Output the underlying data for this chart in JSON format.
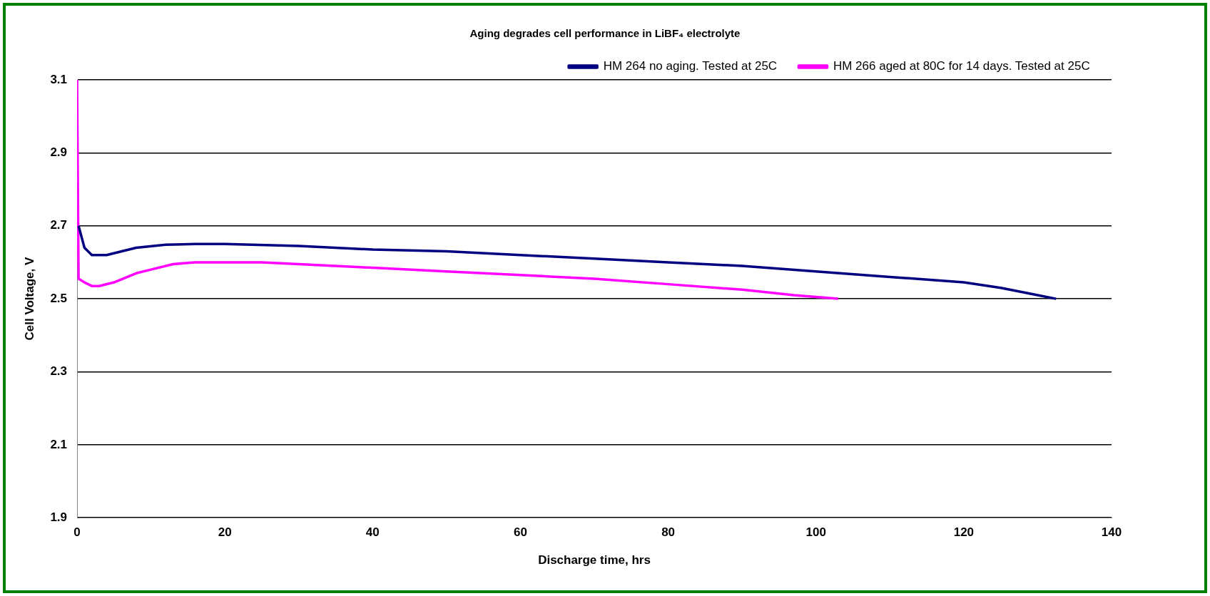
{
  "chart_data": {
    "type": "line",
    "title": "Aging degrades cell performance in LiBF₄ electrolyte",
    "xlabel": "Discharge time, hrs",
    "ylabel": "Cell Voltage, V",
    "xlim": [
      0,
      140
    ],
    "xticks": [
      0,
      20,
      40,
      60,
      80,
      100,
      120,
      140
    ],
    "ylim": [
      1.9,
      3.1
    ],
    "yticks": [
      1.9,
      2.1,
      2.3,
      2.5,
      2.7,
      2.9,
      3.1
    ],
    "grid": "y",
    "legend": "top",
    "marker": "none",
    "series": [
      {
        "name": "HM 264 no aging. Tested at 25C",
        "color": "#000080",
        "x": [
          0.2,
          1,
          2,
          4,
          8,
          12,
          16,
          20,
          30,
          40,
          50,
          60,
          70,
          80,
          90,
          100,
          110,
          120,
          125,
          130,
          132.5
        ],
        "values": [
          2.7,
          2.64,
          2.62,
          2.62,
          2.64,
          2.648,
          2.65,
          2.65,
          2.645,
          2.635,
          2.63,
          2.62,
          2.61,
          2.6,
          2.59,
          2.575,
          2.56,
          2.545,
          2.53,
          2.51,
          2.5
        ]
      },
      {
        "name": "HM 266 aged at 80C for 14 days. Tested at 25C",
        "color": "#ff00ff",
        "x": [
          0,
          0.2,
          1,
          2,
          3,
          5,
          8,
          10,
          13,
          16,
          20,
          25,
          30,
          40,
          50,
          60,
          70,
          80,
          90,
          97,
          103
        ],
        "values": [
          3.1,
          2.555,
          2.545,
          2.535,
          2.535,
          2.545,
          2.57,
          2.58,
          2.595,
          2.6,
          2.6,
          2.6,
          2.595,
          2.585,
          2.575,
          2.565,
          2.555,
          2.54,
          2.525,
          2.51,
          2.5
        ]
      }
    ]
  }
}
